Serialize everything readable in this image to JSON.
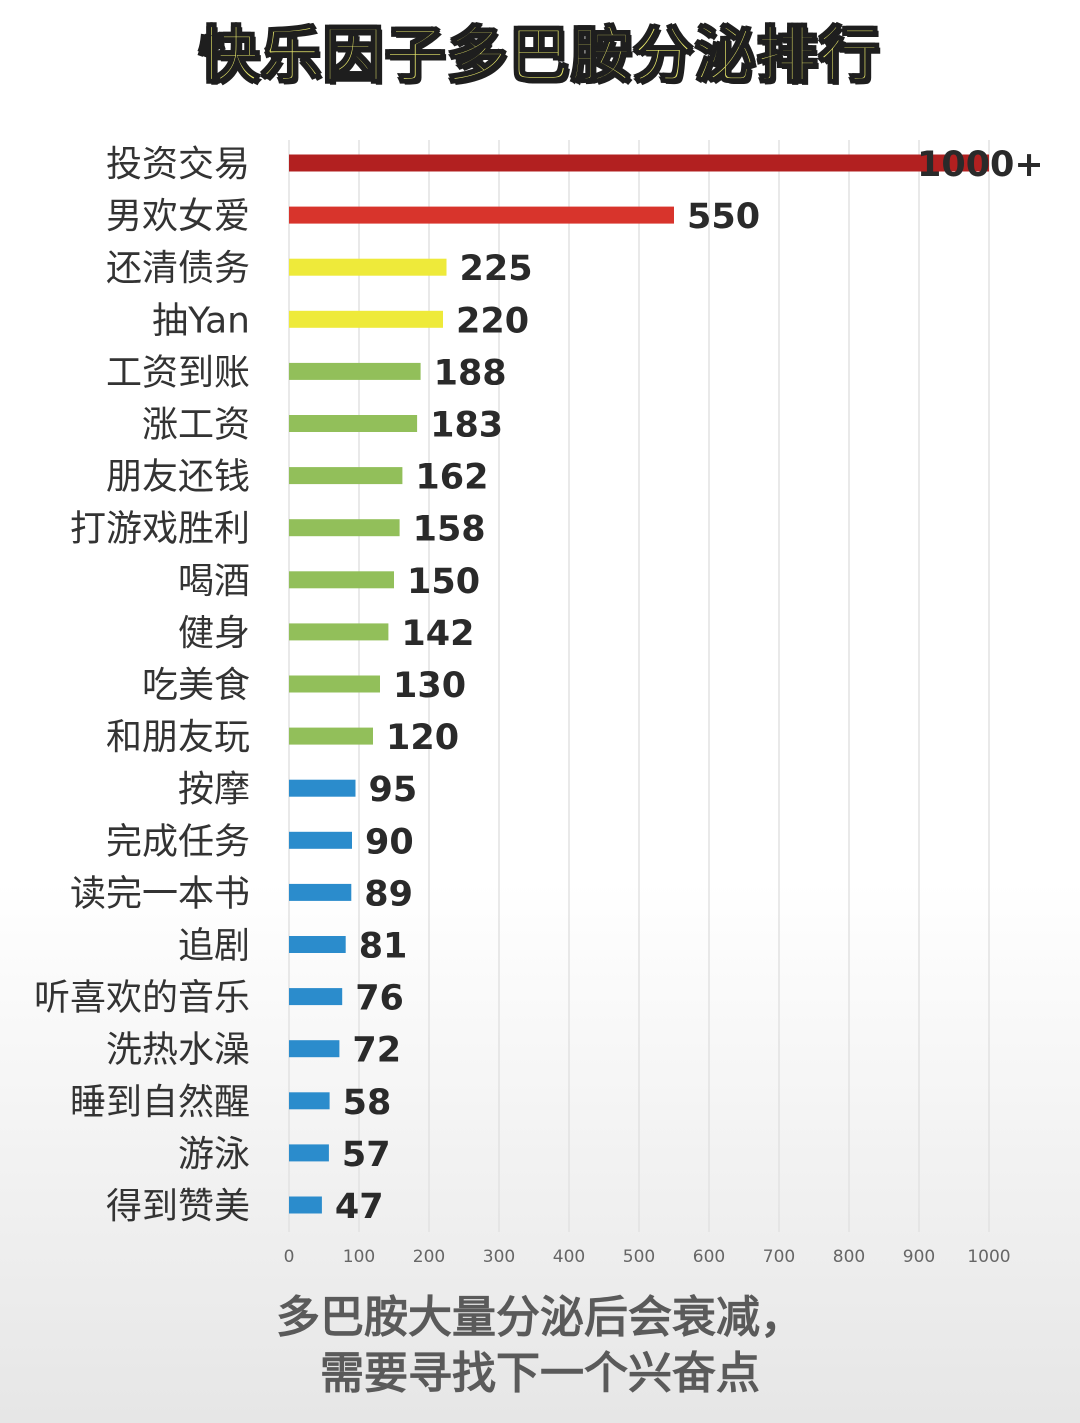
{
  "title": "快乐因子多巴胺分泌排行",
  "footer": {
    "line1": "多巴胺大量分泌后会衰减，",
    "line2": "需要寻找下一个兴奋点"
  },
  "chart_data": {
    "type": "bar",
    "orientation": "horizontal",
    "categories": [
      "投资交易",
      "男欢女爱",
      "还清债务",
      "抽Yan",
      "工资到账",
      "涨工资",
      "朋友还钱",
      "打游戏胜利",
      "喝酒",
      "健身",
      "吃美食",
      "和朋友玩",
      "按摩",
      "完成任务",
      "读完一本书",
      "追剧",
      "听喜欢的音乐",
      "洗热水澡",
      "睡到自然醒",
      "游泳",
      "得到赞美"
    ],
    "values": [
      1000,
      550,
      225,
      220,
      188,
      183,
      162,
      158,
      150,
      142,
      130,
      120,
      95,
      90,
      89,
      81,
      76,
      72,
      58,
      57,
      47
    ],
    "value_labels": [
      "1000+",
      "550",
      "225",
      "220",
      "188",
      "183",
      "162",
      "158",
      "150",
      "142",
      "130",
      "120",
      "95",
      "90",
      "89",
      "81",
      "76",
      "72",
      "58",
      "57",
      "47"
    ],
    "colors": [
      "#b22020",
      "#d8342c",
      "#eeea3a",
      "#eeea3a",
      "#92bf5a",
      "#92bf5a",
      "#92bf5a",
      "#92bf5a",
      "#92bf5a",
      "#92bf5a",
      "#92bf5a",
      "#92bf5a",
      "#2b8ccc",
      "#2b8ccc",
      "#2b8ccc",
      "#2b8ccc",
      "#2b8ccc",
      "#2b8ccc",
      "#2b8ccc",
      "#2b8ccc",
      "#2b8ccc"
    ],
    "xticks": [
      "0",
      "100",
      "200",
      "300",
      "400",
      "500",
      "600",
      "700",
      "800",
      "900",
      "1000"
    ],
    "xlim": [
      0,
      1000
    ],
    "grid": true
  }
}
